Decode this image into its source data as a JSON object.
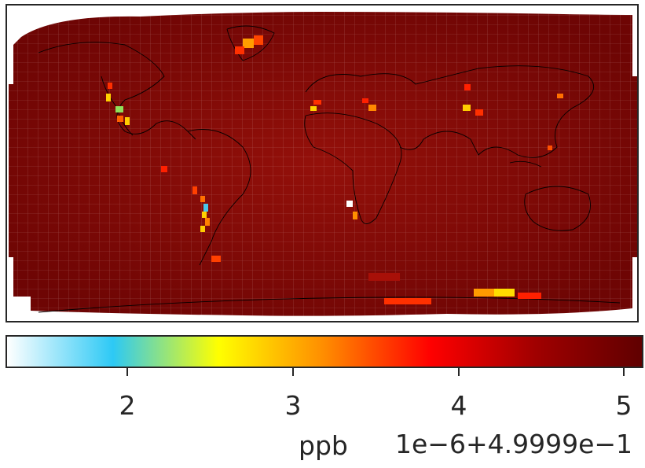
{
  "colorbar": {
    "unit_label": "ppb",
    "offset_label": "1e−6+4.9999e−1",
    "ticks": [
      "2",
      "3",
      "4",
      "5"
    ],
    "range": [
      1.3,
      5.1
    ],
    "colormap": [
      "#ffffff",
      "#2dc9f5",
      "#ffff00",
      "#ff8c00",
      "#ff0000",
      "#a00000",
      "#600000"
    ]
  },
  "map": {
    "projection": "cubed-sphere grid on equirectangular",
    "background_value_color": "#8b0a05",
    "hotspot_regions": [
      "western north america",
      "andes",
      "greenland",
      "antarctica",
      "central asia",
      "southern africa"
    ]
  }
}
